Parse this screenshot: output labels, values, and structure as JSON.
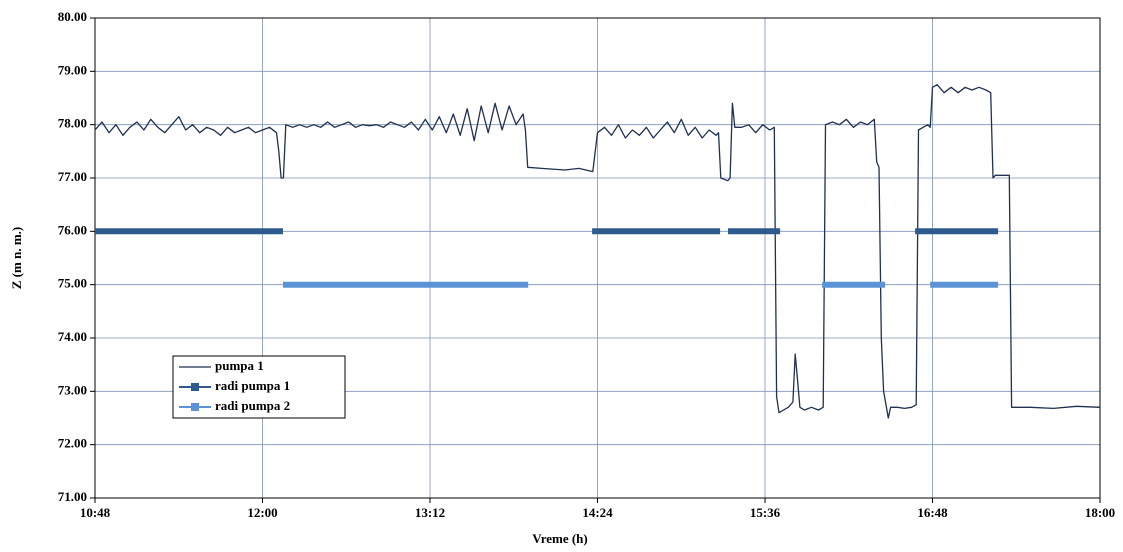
{
  "chart_data": {
    "type": "line",
    "xlabel": "Vreme  (h)",
    "ylabel": "Z (m n. m.)",
    "xlim": [
      648,
      1080
    ],
    "ylim": [
      71,
      80
    ],
    "xticks": [
      {
        "value": 648,
        "label": "10:48"
      },
      {
        "value": 720,
        "label": "12:00"
      },
      {
        "value": 792,
        "label": "13:12"
      },
      {
        "value": 864,
        "label": "14:24"
      },
      {
        "value": 936,
        "label": "15:36"
      },
      {
        "value": 1008,
        "label": "16:48"
      },
      {
        "value": 1080,
        "label": "18:00"
      }
    ],
    "yticks": [
      {
        "value": 71,
        "label": "71.00"
      },
      {
        "value": 72,
        "label": "72.00"
      },
      {
        "value": 73,
        "label": "73.00"
      },
      {
        "value": 74,
        "label": "74.00"
      },
      {
        "value": 75,
        "label": "75.00"
      },
      {
        "value": 76,
        "label": "76.00"
      },
      {
        "value": 77,
        "label": "77.00"
      },
      {
        "value": 78,
        "label": "78.00"
      },
      {
        "value": 79,
        "label": "79.00"
      },
      {
        "value": 80,
        "label": "80.00"
      }
    ],
    "grid": true,
    "legend": "lower left",
    "series": [
      {
        "name": "pumpa 1",
        "color": "#1f3050",
        "width": 1.3,
        "x": [
          648,
          651,
          654,
          657,
          660,
          663,
          666,
          669,
          672,
          675,
          678,
          681,
          684,
          687,
          690,
          693,
          696,
          699,
          702,
          705,
          708,
          711,
          714,
          717,
          720,
          723,
          726,
          727,
          728,
          729,
          730,
          733,
          736,
          739,
          742,
          745,
          748,
          751,
          754,
          757,
          760,
          763,
          766,
          769,
          772,
          775,
          778,
          781,
          784,
          787,
          790,
          793,
          796,
          799,
          802,
          805,
          808,
          811,
          814,
          817,
          820,
          823,
          826,
          829,
          832,
          833,
          834,
          840,
          850,
          856,
          862,
          864,
          867,
          870,
          873,
          876,
          879,
          882,
          885,
          888,
          891,
          894,
          897,
          900,
          903,
          906,
          909,
          912,
          915,
          916,
          917,
          920,
          921,
          922,
          923,
          926,
          929,
          932,
          935,
          938,
          940,
          941,
          942,
          944,
          946,
          948,
          949,
          950,
          951,
          953,
          956,
          959,
          961,
          962,
          965,
          968,
          971,
          974,
          977,
          980,
          983,
          984,
          985,
          986,
          987,
          989,
          990,
          993,
          996,
          999,
          1001,
          1002,
          1004,
          1006,
          1007,
          1008,
          1010,
          1013,
          1016,
          1019,
          1022,
          1025,
          1028,
          1031,
          1033,
          1034,
          1035,
          1041,
          1042,
          1050,
          1060,
          1070,
          1080
        ],
        "values": [
          77.9,
          78.05,
          77.85,
          78.0,
          77.8,
          77.95,
          78.05,
          77.9,
          78.1,
          77.95,
          77.85,
          78.0,
          78.15,
          77.9,
          78.0,
          77.85,
          77.95,
          77.9,
          77.8,
          77.95,
          77.85,
          77.9,
          77.95,
          77.85,
          77.9,
          77.95,
          77.85,
          77.5,
          77.0,
          77.0,
          78.0,
          77.95,
          78.0,
          77.95,
          78.0,
          77.95,
          78.05,
          77.95,
          78.0,
          78.05,
          77.95,
          78.0,
          77.98,
          78.0,
          77.95,
          78.05,
          78.0,
          77.95,
          78.05,
          77.9,
          78.1,
          77.9,
          78.15,
          77.85,
          78.2,
          77.8,
          78.3,
          77.7,
          78.35,
          77.85,
          78.4,
          77.9,
          78.35,
          78.0,
          78.2,
          77.9,
          77.2,
          77.18,
          77.15,
          77.18,
          77.12,
          77.85,
          77.95,
          77.8,
          78.0,
          77.75,
          77.9,
          77.8,
          77.95,
          77.75,
          77.9,
          78.05,
          77.85,
          78.1,
          77.8,
          77.95,
          77.75,
          77.9,
          77.8,
          77.85,
          77.0,
          76.95,
          77.0,
          78.4,
          77.95,
          77.95,
          78.0,
          77.85,
          78.0,
          77.9,
          77.95,
          72.9,
          72.6,
          72.65,
          72.7,
          72.8,
          73.7,
          73.2,
          72.7,
          72.65,
          72.7,
          72.65,
          72.7,
          78.0,
          78.05,
          78.0,
          78.1,
          77.95,
          78.05,
          78.0,
          78.1,
          77.3,
          77.2,
          74.0,
          73.0,
          72.5,
          72.7,
          72.7,
          72.68,
          72.7,
          72.75,
          77.9,
          77.95,
          78.0,
          77.95,
          78.7,
          78.75,
          78.6,
          78.7,
          78.6,
          78.7,
          78.65,
          78.7,
          78.65,
          78.6,
          77.0,
          77.05,
          77.05,
          72.7,
          72.7,
          72.68,
          72.72,
          72.7
        ]
      },
      {
        "name": "radi pumpa 1",
        "color": "#2e5a8e",
        "width": 6,
        "x": [
          648,
          728.8,
          800,
          861.7,
          916.7,
          918,
          920.1,
          942.5,
          970,
          1000.5,
          1036.2
        ],
        "values": [
          76,
          76,
          null,
          76,
          76,
          null,
          76,
          76,
          null,
          76,
          76
        ]
      },
      {
        "name": "radi pumpa 2",
        "color": "#5b93d6",
        "width": 6,
        "x": [
          728.8,
          834.2,
          900,
          960.6,
          987.6,
          1000,
          1007,
          1036.2
        ],
        "values": [
          75,
          75,
          null,
          75,
          75,
          null,
          75,
          75
        ]
      }
    ]
  }
}
